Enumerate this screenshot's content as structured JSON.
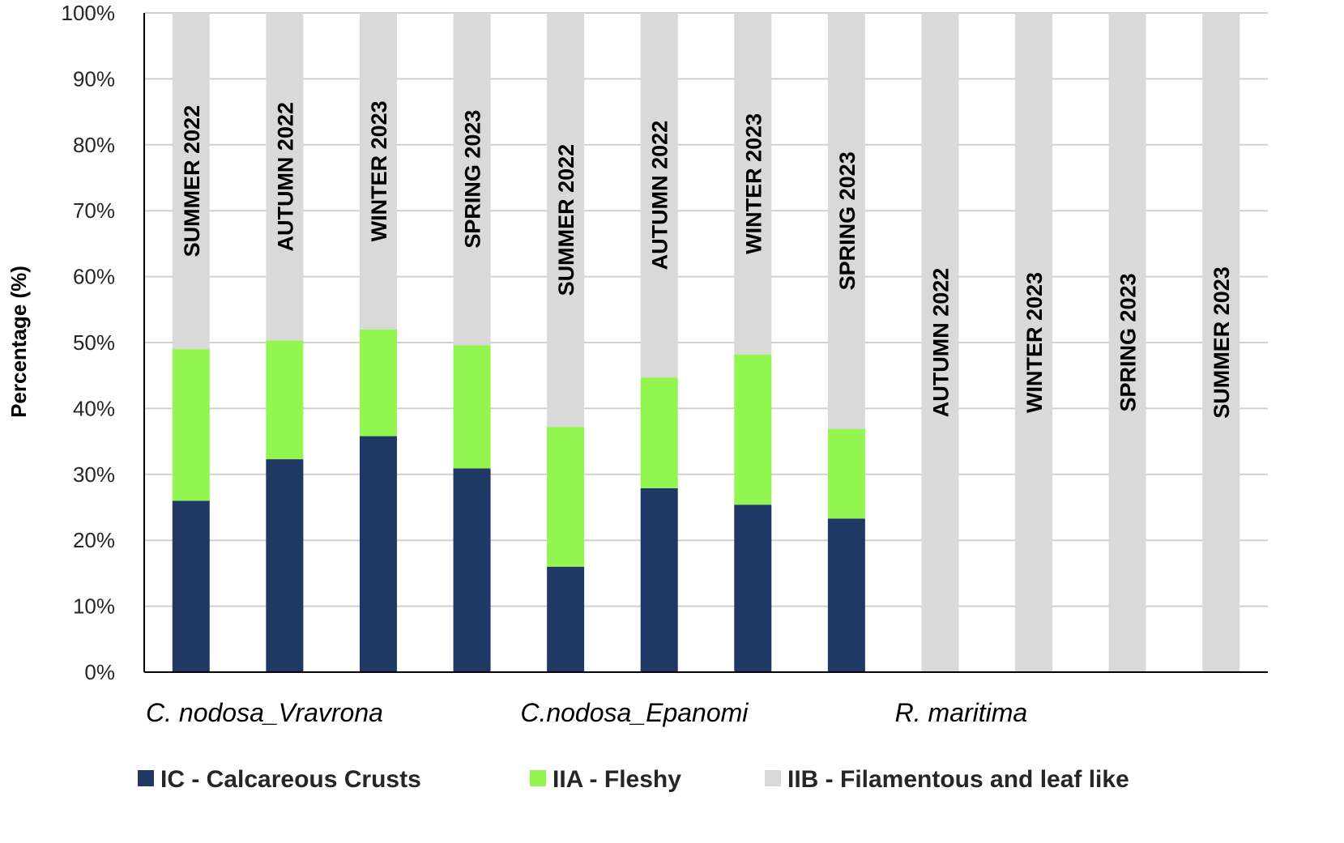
{
  "chart_data": {
    "type": "bar",
    "stacked": true,
    "categories": [
      "SUMMER 2022",
      "AUTUMN 2022",
      "WINTER 2023",
      "SPRING 2023",
      "SUMMER 2022",
      "AUTUMN 2022",
      "WINTER 2023",
      "SPRING 2023",
      "AUTUMN 2022",
      "WINTER 2023",
      "SPRING 2023",
      "SUMMER 2023"
    ],
    "groups": [
      {
        "label": "C. nodosa_Vravrona",
        "count": 4
      },
      {
        "label": "C.nodosa_Epanomi",
        "count": 4
      },
      {
        "label": "R. maritima",
        "count": 4
      }
    ],
    "series": [
      {
        "name": "IC - Calcareous Crusts",
        "color": "#1f3864",
        "values": [
          26,
          32.3,
          35.8,
          30.9,
          16,
          27.9,
          25.4,
          23.3,
          0,
          0,
          0,
          0
        ]
      },
      {
        "name": "IIA - Fleshy",
        "color": "#92f550",
        "values": [
          23,
          18,
          16.2,
          18.7,
          21.2,
          16.8,
          22.8,
          13.6,
          0,
          0,
          0,
          0
        ]
      },
      {
        "name": "IIB - Filamentous and leaf like",
        "color": "#d9d9d9",
        "values": [
          51,
          49.7,
          48,
          50.4,
          62.8,
          55.3,
          51.8,
          63.1,
          100,
          100,
          100,
          100
        ]
      }
    ],
    "yticks": [
      "0%",
      "10%",
      "20%",
      "30%",
      "40%",
      "50%",
      "60%",
      "70%",
      "80%",
      "90%",
      "100%"
    ],
    "ylabel": "Percentage (%)",
    "xlabel": "",
    "title": "",
    "ylim": [
      0,
      100
    ],
    "grid": true,
    "legend_position": "bottom"
  }
}
